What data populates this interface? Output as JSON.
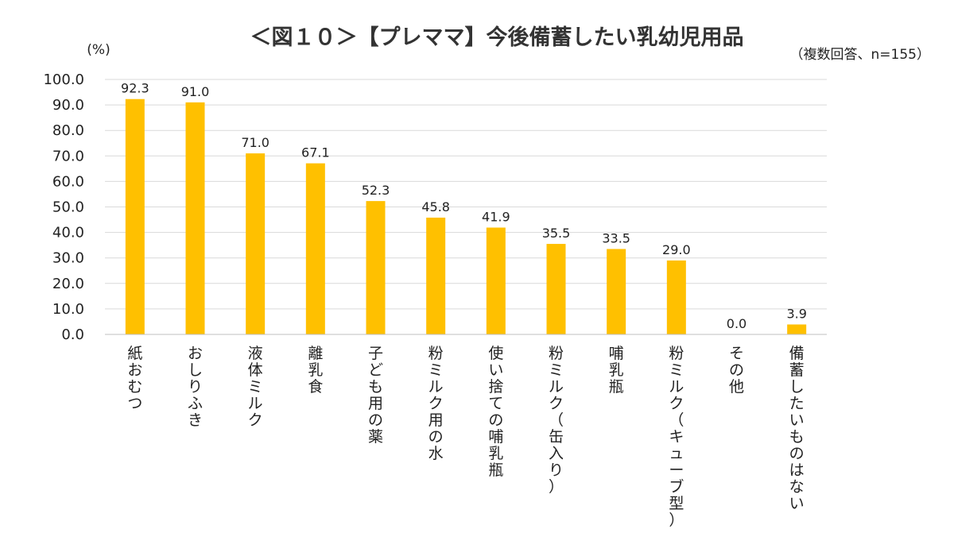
{
  "chart_data": {
    "type": "bar",
    "title": "＜図１０＞【プレママ】今後備蓄したい乳幼児用品",
    "note": "（複数回答、n=155）",
    "unit_label": "(%)",
    "xlabel": "",
    "ylabel": "",
    "ylim": [
      0,
      100
    ],
    "yticks": [
      "0.0",
      "10.0",
      "20.0",
      "30.0",
      "40.0",
      "50.0",
      "60.0",
      "70.0",
      "80.0",
      "90.0",
      "100.0"
    ],
    "grid": true,
    "legend": "none",
    "categories": [
      "紙おむつ",
      "おしりふき",
      "液体ミルク",
      "離乳食",
      "子ども用の薬",
      "粉ミルク用の水",
      "使い捨ての哺乳瓶",
      "粉ミルク（缶入り）",
      "哺乳瓶",
      "粉ミルク（キューブ型）",
      "その他",
      "備蓄したいものはない"
    ],
    "values": [
      92.3,
      91.0,
      71.0,
      67.1,
      52.3,
      45.8,
      41.9,
      35.5,
      33.5,
      29.0,
      0.0,
      3.9
    ],
    "data_labels": [
      "92.3",
      "91.0",
      "71.0",
      "67.1",
      "52.3",
      "45.8",
      "41.9",
      "35.5",
      "33.5",
      "29.0",
      "0.0",
      "3.9"
    ],
    "bar_color": "#FFC000"
  }
}
